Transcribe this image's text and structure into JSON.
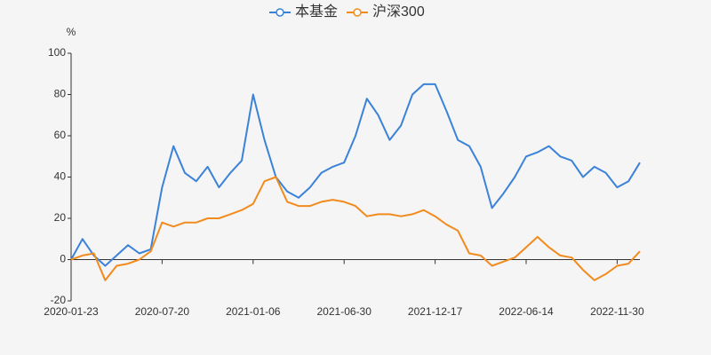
{
  "chart_data": {
    "type": "line",
    "y_unit": "%",
    "categories": [
      "2020-01-23",
      null,
      null,
      null,
      null,
      null,
      null,
      null,
      "2020-07-20",
      null,
      null,
      null,
      null,
      null,
      null,
      null,
      "2021-01-06",
      null,
      null,
      null,
      null,
      null,
      null,
      null,
      "2021-06-30",
      null,
      null,
      null,
      null,
      null,
      null,
      null,
      "2021-12-17",
      null,
      null,
      null,
      null,
      null,
      null,
      null,
      "2022-06-14",
      null,
      null,
      null,
      null,
      null,
      null,
      null,
      "2022-11-30",
      null,
      null
    ],
    "series": [
      {
        "name": "本基金",
        "color": "#3b82d9",
        "values": [
          0,
          10,
          2,
          -3,
          2,
          7,
          3,
          5,
          35,
          55,
          42,
          38,
          45,
          35,
          42,
          48,
          80,
          58,
          40,
          33,
          30,
          35,
          42,
          45,
          47,
          60,
          78,
          70,
          58,
          65,
          80,
          85,
          85,
          72,
          58,
          55,
          45,
          25,
          32,
          40,
          50,
          52,
          55,
          50,
          48,
          40,
          45,
          42,
          35,
          38,
          47
        ]
      },
      {
        "name": "沪深300",
        "color": "#f28b1e",
        "values": [
          0,
          2,
          3,
          -10,
          -3,
          -2,
          0,
          4,
          18,
          16,
          18,
          18,
          20,
          20,
          22,
          24,
          27,
          38,
          40,
          28,
          26,
          26,
          28,
          29,
          28,
          26,
          21,
          22,
          22,
          21,
          22,
          24,
          21,
          17,
          14,
          3,
          2,
          -3,
          -1,
          1,
          6,
          11,
          6,
          2,
          1,
          -5,
          -10,
          -7,
          -3,
          -2,
          4
        ]
      }
    ],
    "ylim": [
      -20,
      100
    ],
    "yticks": [
      -20,
      0,
      20,
      40,
      60,
      80,
      100
    ],
    "grid": false,
    "legend": "top"
  }
}
